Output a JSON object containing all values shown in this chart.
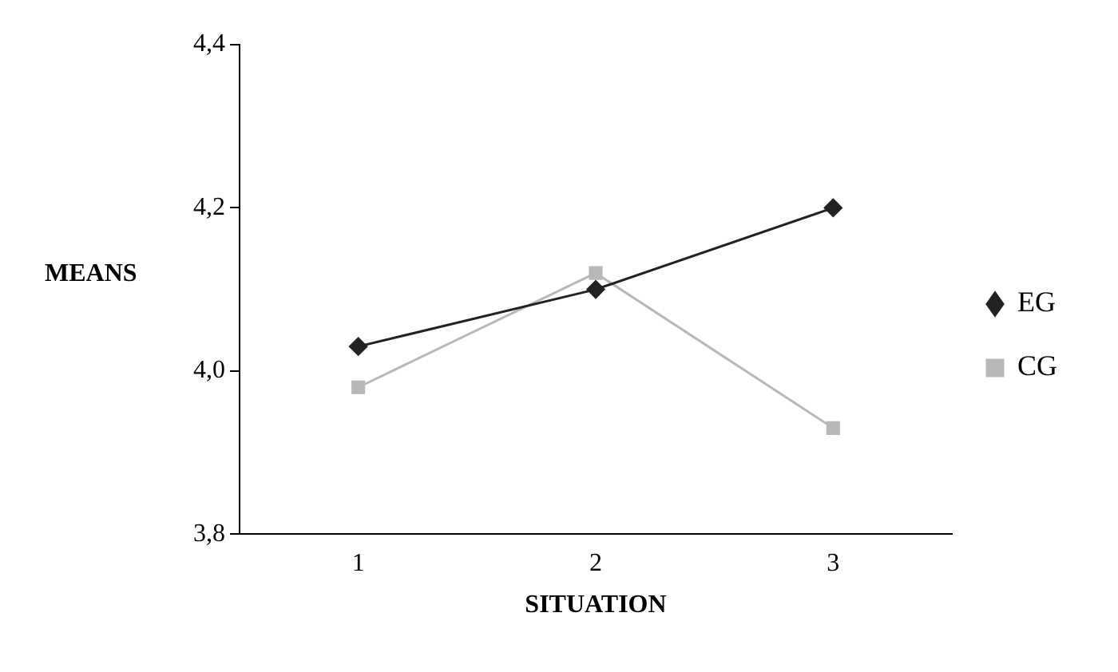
{
  "chart_data": {
    "type": "line",
    "xlabel": "SITUATION",
    "ylabel": "MEANS",
    "categories": [
      "1",
      "2",
      "3"
    ],
    "series": [
      {
        "name": "EG",
        "color": "#222222",
        "marker": "diamond",
        "values": [
          4.03,
          4.1,
          4.2
        ]
      },
      {
        "name": "CG",
        "color": "#b8b8b8",
        "marker": "square",
        "values": [
          3.98,
          4.12,
          3.93
        ]
      }
    ],
    "ylim": [
      3.8,
      4.4
    ],
    "yticks": [
      {
        "value": 3.8,
        "label": "3,8"
      },
      {
        "value": 4.0,
        "label": "4,0"
      },
      {
        "value": 4.2,
        "label": "4,2"
      },
      {
        "value": 4.4,
        "label": "4,4"
      }
    ],
    "grid": false,
    "legend": "right",
    "line_style": "solid"
  }
}
